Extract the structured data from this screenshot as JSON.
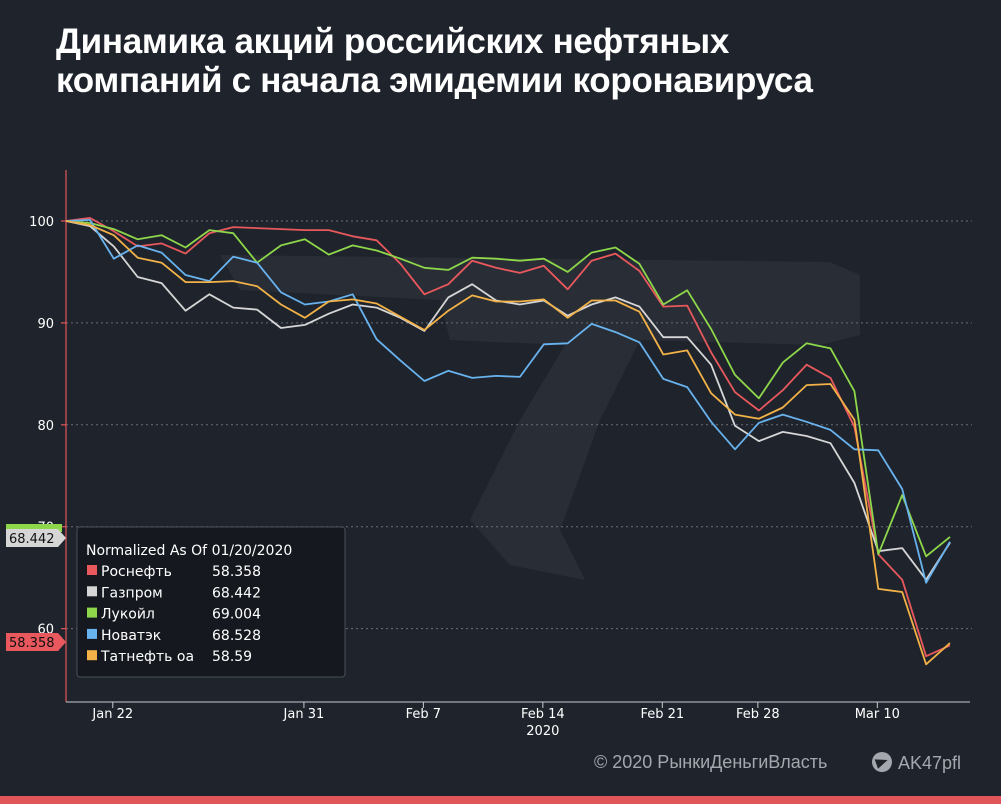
{
  "title": "Динамика акций российских нефтяных компаний с начала эмидемии коронавируса",
  "footer": {
    "copyright": "© 2020  РынкиДеньгиВласть",
    "telegram_handle": "AK47pfl"
  },
  "colors": {
    "background": "#1f242c",
    "accent_bar": "#e0555a"
  },
  "chart_data": {
    "type": "line",
    "x_axis": {
      "ticks": [
        "Jan 22",
        "Jan 31",
        "Feb 7",
        "Feb 14",
        "Feb 21",
        "Feb 28",
        "Mar 10"
      ],
      "year_label": "2020"
    },
    "y_axis": {
      "ylim": [
        53,
        105
      ],
      "ticks": [
        60,
        70,
        80,
        90,
        100
      ],
      "grid": true
    },
    "legend": {
      "title": "Normalized As Of 01/20/2020",
      "placement": "bottom-left"
    },
    "price_tags": [
      "68.442",
      "58.358"
    ],
    "series": [
      {
        "name": "Роснефть",
        "last": "58.358",
        "color": "#e8585d",
        "values": [
          100,
          100.3,
          99,
          97.5,
          97.8,
          96.8,
          98.8,
          99.4,
          99.3,
          99.2,
          99.1,
          99.1,
          98.5,
          98.1,
          95.8,
          92.8,
          93.8,
          96.1,
          95.4,
          94.9,
          95.6,
          93.3,
          96.1,
          96.8,
          95.1,
          91.6,
          91.7,
          87.1,
          83.2,
          81.4,
          83.4,
          85.9,
          84.6,
          79.8,
          67.3,
          64.8,
          57.3,
          58.36
        ]
      },
      {
        "name": "Газпром",
        "last": "68.442",
        "color": "#d6d6d6",
        "values": [
          100,
          99.5,
          97.5,
          94.5,
          93.9,
          91.2,
          92.8,
          91.5,
          91.3,
          89.5,
          89.8,
          90.9,
          91.8,
          91.5,
          90.5,
          89.2,
          92.5,
          93.8,
          92.2,
          91.8,
          92.2,
          90.7,
          91.8,
          92.5,
          91.6,
          88.6,
          88.6,
          85.9,
          79.9,
          78.4,
          79.3,
          78.9,
          78.2,
          74.3,
          67.6,
          67.9,
          64.8,
          68.44
        ]
      },
      {
        "name": "Лукойл",
        "last": "69.004",
        "color": "#8ed64a",
        "values": [
          100,
          99.8,
          99.2,
          98.2,
          98.6,
          97.4,
          99.1,
          98.8,
          95.9,
          97.6,
          98.2,
          96.7,
          97.6,
          97.1,
          96.3,
          95.4,
          95.2,
          96.4,
          96.3,
          96.1,
          96.3,
          95,
          96.9,
          97.4,
          95.8,
          91.8,
          93.2,
          89.4,
          84.9,
          82.6,
          86.1,
          88,
          87.5,
          83.3,
          67.3,
          73.1,
          67.1,
          69
        ]
      },
      {
        "name": "Новатэк",
        "last": "68.528",
        "color": "#68b2ee",
        "values": [
          100,
          100.1,
          96.3,
          97.6,
          96.9,
          94.7,
          94.1,
          96.5,
          95.9,
          93,
          91.8,
          92.1,
          92.8,
          88.4,
          86.3,
          84.3,
          85.3,
          84.6,
          84.8,
          84.7,
          87.9,
          88,
          89.9,
          89.1,
          88.1,
          84.5,
          83.7,
          80.3,
          77.6,
          80.2,
          81,
          80.3,
          79.5,
          77.6,
          77.5,
          73.7,
          64.5,
          68.53
        ]
      },
      {
        "name": "Татнефть оа",
        "last": "58.59",
        "color": "#f2b247",
        "values": [
          100,
          99.6,
          98.6,
          96.4,
          95.9,
          94,
          94,
          94.1,
          93.6,
          91.8,
          90.5,
          92.1,
          92.3,
          91.9,
          90.6,
          89.3,
          91.2,
          92.7,
          92.1,
          92.1,
          92.3,
          90.5,
          92.2,
          92.2,
          91.1,
          86.9,
          87.3,
          83.1,
          81,
          80.6,
          81.7,
          83.9,
          84,
          80.5,
          63.9,
          63.6,
          56.5,
          58.59
        ]
      }
    ]
  }
}
